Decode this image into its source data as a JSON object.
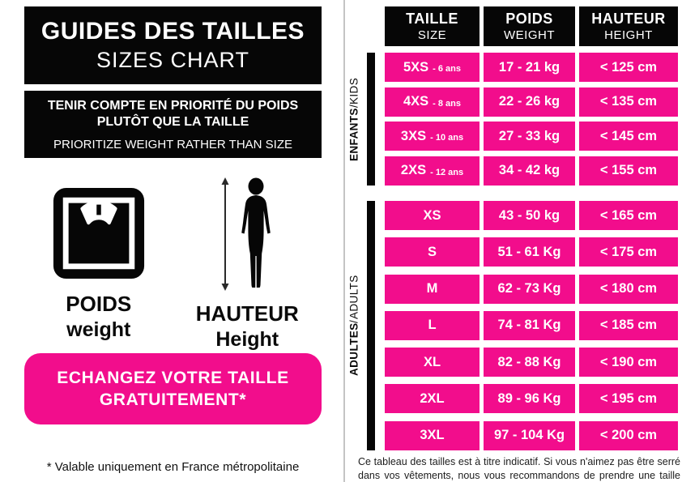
{
  "left_panel": {
    "title": {
      "line1": "GUIDES DES TAILLES",
      "line2": "SIZES CHART"
    },
    "notice": {
      "line1_fr": "TENIR COMPTE EN PRIORITÉ DU POIDS",
      "line2_fr": "PLUTÔT QUE LA TAILLE",
      "line3_en": "PRIORITIZE WEIGHT RATHER THAN SIZE"
    },
    "figures": [
      {
        "icon": "scale-icon",
        "label_fr": "POIDS",
        "label_en": "weight"
      },
      {
        "icon": "height-icon",
        "label_fr": "HAUTEUR",
        "label_en": "Height"
      }
    ],
    "exchange_button": {
      "line1": "ECHANGEZ VOTRE TAILLE",
      "line2": "GRATUITEMENT*"
    },
    "footnote": "* Valable uniquement en France métropolitaine"
  },
  "size_table": {
    "headers": [
      {
        "fr": "TAILLE",
        "en": "SIZE"
      },
      {
        "fr": "POIDS",
        "en": "WEIGHT"
      },
      {
        "fr": "HAUTEUR",
        "en": "HEIGHT"
      }
    ],
    "label_separator": " / ",
    "groups": [
      {
        "label_fr": "ENFANTS",
        "label_en": "KIDS",
        "rows": [
          {
            "size": "5XS",
            "age": "- 6 ans",
            "weight": "17 - 21 kg",
            "height": "< 125 cm"
          },
          {
            "size": "4XS",
            "age": "- 8 ans",
            "weight": "22 - 26 kg",
            "height": "< 135 cm"
          },
          {
            "size": "3XS",
            "age": "- 10 ans",
            "weight": "27 - 33 kg",
            "height": "< 145 cm"
          },
          {
            "size": "2XS",
            "age": "- 12 ans",
            "weight": "34 - 42 kg",
            "height": "< 155 cm"
          }
        ]
      },
      {
        "label_fr": "ADULTES",
        "label_en": "ADULTS",
        "rows": [
          {
            "size": "XS",
            "age": "",
            "weight": "43 - 50 kg",
            "height": "< 165 cm"
          },
          {
            "size": "S",
            "age": "",
            "weight": "51 - 61 Kg",
            "height": "< 175 cm"
          },
          {
            "size": "M",
            "age": "",
            "weight": "62 - 73 Kg",
            "height": "< 180 cm"
          },
          {
            "size": "L",
            "age": "",
            "weight": "74 - 81 Kg",
            "height": "< 185 cm"
          },
          {
            "size": "XL",
            "age": "",
            "weight": "82 - 88 Kg",
            "height": "< 190 cm"
          },
          {
            "size": "2XL",
            "age": "",
            "weight": "89 - 96 Kg",
            "height": "< 195 cm"
          },
          {
            "size": "3XL",
            "age": "",
            "weight": "97 - 104 Kg",
            "height": "< 200 cm"
          }
        ]
      }
    ],
    "note_line1": "Ce tableau des tailles est à titre indicatif. Si vous n'aimez pas être serré",
    "note_line2": "dans vos vêtements, nous vous recommandons de prendre une taille au dessus"
  },
  "colors": {
    "pink": "#F20D8C",
    "black": "#060606",
    "divider": "#C4C4C4"
  }
}
